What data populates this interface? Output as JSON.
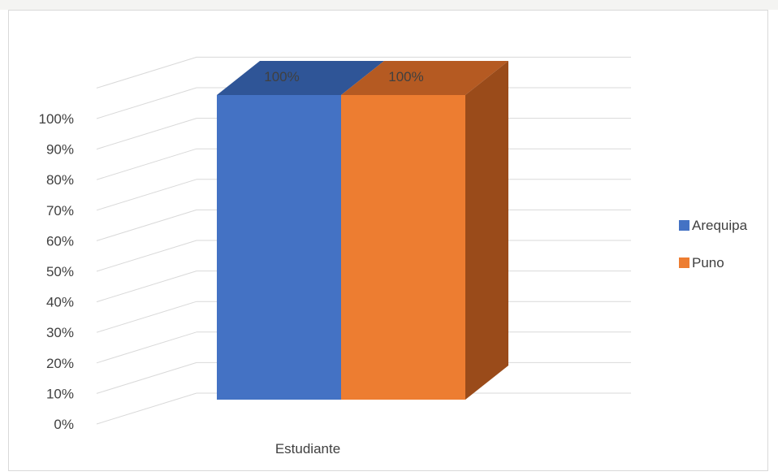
{
  "chart_data": {
    "type": "bar",
    "title": "",
    "xlabel": "",
    "ylabel": "",
    "categories": [
      "Estudiante"
    ],
    "series": [
      {
        "name": "Arequipa",
        "values": [
          100
        ],
        "data_label": "100%"
      },
      {
        "name": "Puno",
        "values": [
          100
        ],
        "data_label": "100%"
      }
    ],
    "ylim": [
      0,
      100
    ],
    "y_ticks": [
      "0%",
      "10%",
      "20%",
      "30%",
      "40%",
      "50%",
      "60%",
      "70%",
      "80%",
      "90%",
      "100%"
    ],
    "legend_position": "right",
    "grid": true,
    "three_d": true
  },
  "colors": {
    "arequipa_front": "#4472c4",
    "arequipa_top": "#2f5597",
    "puno_front": "#ed7d31",
    "puno_top": "#b55a22",
    "puno_side": "#9a4b1a",
    "grid": "#d9d9d9",
    "axis_text": "#404040"
  }
}
